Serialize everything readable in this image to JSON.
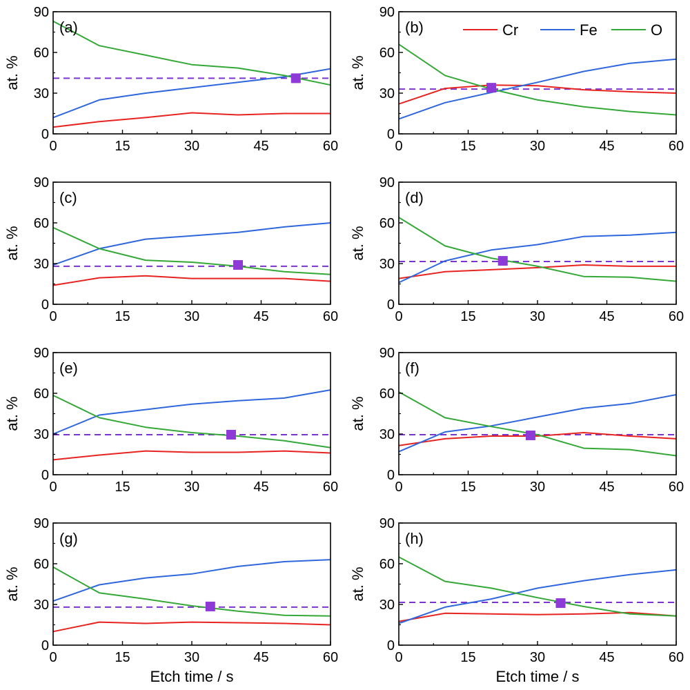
{
  "chart_data": [
    {
      "type": "line",
      "panel_label": "(a)",
      "x": [
        0,
        10,
        20,
        30,
        40,
        50,
        60
      ],
      "series": [
        {
          "name": "Cr",
          "color": "#e8231f",
          "values": [
            5,
            9,
            12,
            15.5,
            14,
            15,
            15
          ]
        },
        {
          "name": "Fe",
          "color": "#2e66dd",
          "values": [
            12,
            25,
            30,
            34,
            38,
            42,
            48
          ]
        },
        {
          "name": "O",
          "color": "#33a837",
          "values": [
            83,
            65,
            58,
            51,
            48.5,
            43,
            36
          ]
        }
      ],
      "threshold": 41,
      "marker": {
        "x": 52.5,
        "y": 41
      },
      "xlabel": "",
      "ylabel": "at. %",
      "xlim": [
        0,
        60
      ],
      "ylim": [
        0,
        90
      ],
      "xticks": [
        0,
        15,
        30,
        45,
        60
      ],
      "yticks": [
        0,
        30,
        60,
        90
      ]
    },
    {
      "type": "line",
      "panel_label": "(b)",
      "x": [
        0,
        10,
        20,
        30,
        40,
        50,
        60
      ],
      "series": [
        {
          "name": "Cr",
          "color": "#e8231f",
          "values": [
            22,
            33.5,
            36,
            35.5,
            32.5,
            31,
            30
          ]
        },
        {
          "name": "Fe",
          "color": "#2e66dd",
          "values": [
            11,
            23,
            30.5,
            38,
            46,
            52,
            55
          ]
        },
        {
          "name": "O",
          "color": "#33a837",
          "values": [
            66,
            43,
            33,
            25,
            20,
            16.5,
            14
          ]
        }
      ],
      "threshold": 33,
      "marker": {
        "x": 20,
        "y": 34
      },
      "xlabel": "",
      "ylabel": "at. %",
      "xlim": [
        0,
        60
      ],
      "ylim": [
        0,
        90
      ],
      "xticks": [
        0,
        15,
        30,
        45,
        60
      ],
      "yticks": [
        0,
        30,
        60,
        90
      ]
    },
    {
      "type": "line",
      "panel_label": "(c)",
      "x": [
        0,
        10,
        20,
        30,
        40,
        50,
        60
      ],
      "series": [
        {
          "name": "Cr",
          "color": "#e8231f",
          "values": [
            14,
            19.5,
            21,
            19,
            19,
            19,
            17
          ]
        },
        {
          "name": "Fe",
          "color": "#2e66dd",
          "values": [
            29,
            41,
            48,
            50.5,
            53,
            57,
            60
          ]
        },
        {
          "name": "O",
          "color": "#33a837",
          "values": [
            56.5,
            41,
            32.5,
            31,
            28,
            24,
            22
          ]
        }
      ],
      "threshold": 28,
      "marker": {
        "x": 40,
        "y": 29
      },
      "xlabel": "",
      "ylabel": "at. %",
      "xlim": [
        0,
        60
      ],
      "ylim": [
        0,
        90
      ],
      "xticks": [
        0,
        15,
        30,
        45,
        60
      ],
      "yticks": [
        0,
        30,
        60,
        90
      ]
    },
    {
      "type": "line",
      "panel_label": "(d)",
      "x": [
        0,
        10,
        20,
        30,
        40,
        50,
        60
      ],
      "series": [
        {
          "name": "Cr",
          "color": "#e8231f",
          "values": [
            19,
            24,
            25.5,
            27,
            29,
            28,
            28
          ]
        },
        {
          "name": "Fe",
          "color": "#2e66dd",
          "values": [
            16,
            32,
            40,
            44,
            50,
            51,
            53
          ]
        },
        {
          "name": "O",
          "color": "#33a837",
          "values": [
            64,
            43,
            34,
            28,
            20.5,
            20,
            17
          ]
        }
      ],
      "threshold": 31.5,
      "marker": {
        "x": 22.5,
        "y": 32
      },
      "xlabel": "",
      "ylabel": "at. %",
      "xlim": [
        0,
        60
      ],
      "ylim": [
        0,
        90
      ],
      "xticks": [
        0,
        15,
        30,
        45,
        60
      ],
      "yticks": [
        0,
        30,
        60,
        90
      ]
    },
    {
      "type": "line",
      "panel_label": "(e)",
      "x": [
        0,
        10,
        20,
        30,
        40,
        50,
        60
      ],
      "series": [
        {
          "name": "Cr",
          "color": "#e8231f",
          "values": [
            11,
            14.5,
            17.5,
            16.5,
            16.5,
            17.5,
            16
          ]
        },
        {
          "name": "Fe",
          "color": "#2e66dd",
          "values": [
            30,
            44,
            48,
            52,
            54.5,
            56.5,
            62.5
          ]
        },
        {
          "name": "O",
          "color": "#33a837",
          "values": [
            58.5,
            42,
            35,
            31,
            28.5,
            25,
            20
          ]
        }
      ],
      "threshold": 29.5,
      "marker": {
        "x": 38.5,
        "y": 29.5
      },
      "xlabel": "",
      "ylabel": "at. %",
      "xlim": [
        0,
        60
      ],
      "ylim": [
        0,
        90
      ],
      "xticks": [
        0,
        15,
        30,
        45,
        60
      ],
      "yticks": [
        0,
        30,
        60,
        90
      ]
    },
    {
      "type": "line",
      "panel_label": "(f)",
      "x": [
        0,
        10,
        20,
        30,
        40,
        50,
        60
      ],
      "series": [
        {
          "name": "Cr",
          "color": "#e8231f",
          "values": [
            21.5,
            26.5,
            28.5,
            28.5,
            31,
            28.5,
            26.5
          ]
        },
        {
          "name": "Fe",
          "color": "#2e66dd",
          "values": [
            17,
            31.5,
            36,
            42.5,
            49,
            52.5,
            59
          ]
        },
        {
          "name": "O",
          "color": "#33a837",
          "values": [
            61,
            42,
            35.5,
            29.5,
            19.5,
            18.5,
            14
          ]
        }
      ],
      "threshold": 29.5,
      "marker": {
        "x": 28.5,
        "y": 29
      },
      "xlabel": "",
      "ylabel": "at. %",
      "xlim": [
        0,
        60
      ],
      "ylim": [
        0,
        90
      ],
      "xticks": [
        0,
        15,
        30,
        45,
        60
      ],
      "yticks": [
        0,
        30,
        60,
        90
      ]
    },
    {
      "type": "line",
      "panel_label": "(g)",
      "x": [
        0,
        10,
        20,
        30,
        40,
        50,
        60
      ],
      "series": [
        {
          "name": "Cr",
          "color": "#e8231f",
          "values": [
            10,
            17,
            16,
            17,
            16.5,
            16,
            15
          ]
        },
        {
          "name": "Fe",
          "color": "#2e66dd",
          "values": [
            32.5,
            44.5,
            49.5,
            52.5,
            58,
            61.5,
            63
          ]
        },
        {
          "name": "O",
          "color": "#33a837",
          "values": [
            57.5,
            38.5,
            34,
            29,
            25,
            22,
            21.5
          ]
        }
      ],
      "threshold": 28,
      "marker": {
        "x": 34,
        "y": 28.5
      },
      "xlabel": "Etch time / s",
      "ylabel": "at. %",
      "xlim": [
        0,
        60
      ],
      "ylim": [
        0,
        90
      ],
      "xticks": [
        0,
        15,
        30,
        45,
        60
      ],
      "yticks": [
        0,
        30,
        60,
        90
      ]
    },
    {
      "type": "line",
      "panel_label": "(h)",
      "x": [
        0,
        10,
        20,
        30,
        40,
        50,
        60
      ],
      "series": [
        {
          "name": "Cr",
          "color": "#e8231f",
          "values": [
            17.5,
            23.5,
            23,
            22.5,
            23,
            24,
            21.5
          ]
        },
        {
          "name": "Fe",
          "color": "#2e66dd",
          "values": [
            16,
            28,
            34,
            42,
            47.5,
            52,
            55.5
          ]
        },
        {
          "name": "O",
          "color": "#33a837",
          "values": [
            65,
            47,
            42,
            35,
            28.5,
            23,
            21.5
          ]
        }
      ],
      "threshold": 31.5,
      "marker": {
        "x": 35,
        "y": 31
      },
      "xlabel": "Etch time / s",
      "ylabel": "at. %",
      "xlim": [
        0,
        60
      ],
      "ylim": [
        0,
        90
      ],
      "xticks": [
        0,
        15,
        30,
        45,
        60
      ],
      "yticks": [
        0,
        30,
        60,
        90
      ]
    }
  ],
  "legend": {
    "location": "top-right of panel (b)",
    "entries": [
      {
        "name": "Cr",
        "color": "#e8231f"
      },
      {
        "name": "Fe",
        "color": "#2e66dd"
      },
      {
        "name": "O",
        "color": "#33a837"
      }
    ]
  },
  "styles": {
    "threshold_color": "#7a33d1",
    "marker_color": "#8e3ad6"
  }
}
